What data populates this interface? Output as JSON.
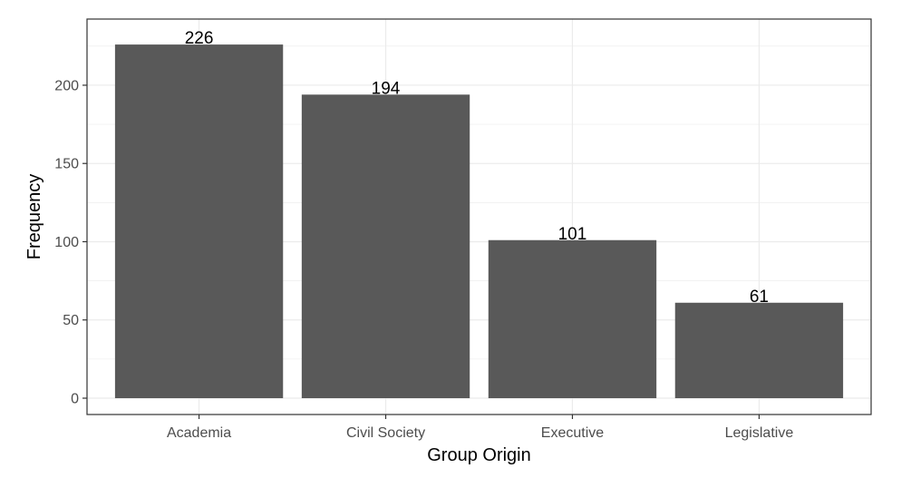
{
  "chart_data": {
    "type": "bar",
    "categories": [
      "Academia",
      "Civil Society",
      "Executive",
      "Legislative"
    ],
    "values": [
      226,
      194,
      101,
      61
    ],
    "data_labels": [
      "226",
      "194",
      "101",
      "61"
    ],
    "title": "",
    "xlabel": "Group Origin",
    "ylabel": "Frequency",
    "ylim": [
      0,
      240
    ],
    "yticks": [
      0,
      50,
      100,
      150,
      200
    ],
    "ytick_labels": [
      "0",
      "50",
      "100",
      "150",
      "200"
    ],
    "grid": true,
    "legend": "none",
    "bar_color": "#595959",
    "panel_background": "#ffffff",
    "grid_color": "#ebebeb",
    "border_color": "#333333"
  }
}
